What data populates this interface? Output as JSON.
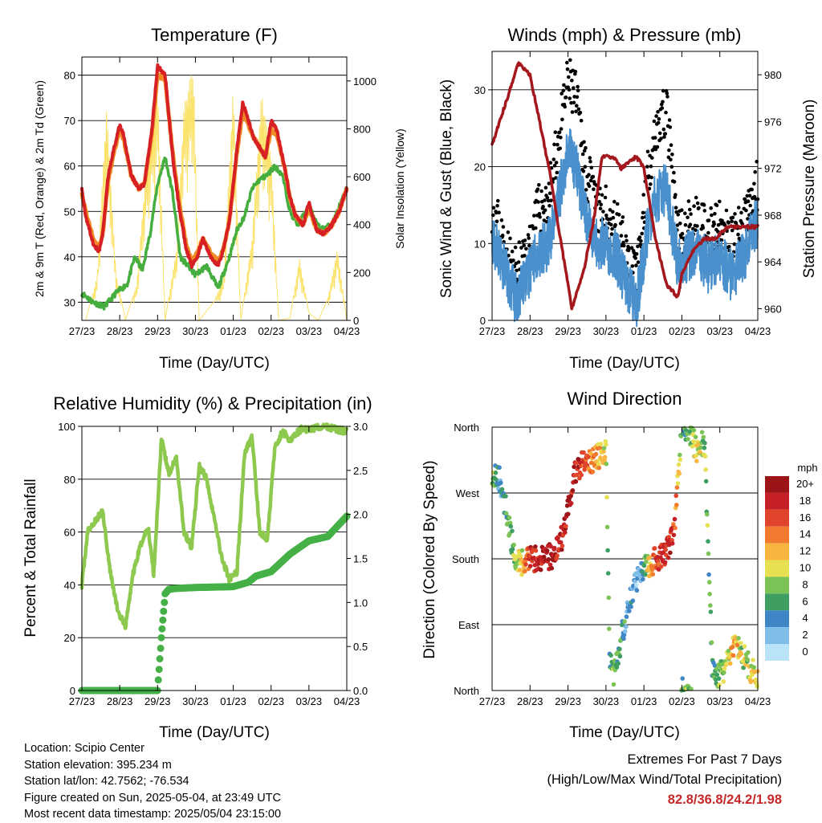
{
  "x_tick_labels": [
    "27/23",
    "28/23",
    "29/23",
    "30/23",
    "01/23",
    "02/23",
    "03/23",
    "04/23"
  ],
  "colors": {
    "t2m": "#d62023",
    "t9m": "#f08a24",
    "td": "#45ae3f",
    "solar": "#fbe26a",
    "gust": "#000000",
    "wind": "#4a90cc",
    "pressure": "#a3171d",
    "rh": "#8ec94f",
    "precip": "#44b046"
  },
  "charts": {
    "temperature": {
      "title": "Temperature (F)",
      "xlabel": "Time (Day/UTC)",
      "ylabel_left": "2m & 9m T (Red, Orange) & 2m Td (Green)",
      "ylabel_right": "Solar Insolation (Yellow)",
      "left_ticks": [
        "30",
        "40",
        "50",
        "60",
        "70",
        "80"
      ],
      "right_ticks": [
        "0",
        "200",
        "400",
        "600",
        "800",
        "1000"
      ]
    },
    "winds": {
      "title": "Winds (mph) & Pressure (mb)",
      "xlabel": "Time (Day/UTC)",
      "ylabel_left": "Sonic Wind & Gust (Blue, Black)",
      "ylabel_right": "Station Pressure (Maroon)",
      "left_ticks": [
        "0",
        "10",
        "20",
        "30"
      ],
      "right_ticks": [
        "960",
        "964",
        "968",
        "972",
        "976",
        "980"
      ]
    },
    "humidity": {
      "title": "Relative Humidity (%) & Precipitation (in)",
      "xlabel": "Time (Day/UTC)",
      "ylabel_left": "Percent & Total Rainfall",
      "left_ticks": [
        "0",
        "20",
        "40",
        "60",
        "80",
        "100"
      ],
      "right_ticks": [
        "0.0",
        "0.5",
        "1.0",
        "1.5",
        "2.0",
        "2.5",
        "3.0"
      ]
    },
    "direction": {
      "title": "Wind Direction",
      "xlabel": "Time (Day/UTC)",
      "ylabel_left": "Direction (Colored By Speed)",
      "left_ticks": [
        "North",
        "East",
        "South",
        "West",
        "North"
      ],
      "legend_title": "mph",
      "legend_labels": [
        "0",
        "2",
        "4",
        "6",
        "8",
        "10",
        "12",
        "14",
        "16",
        "18",
        "20+"
      ],
      "legend_colors": [
        "#b9e3f8",
        "#7fbde8",
        "#3f86c6",
        "#3f9f62",
        "#7cc356",
        "#e6e052",
        "#f8b640",
        "#f07b2e",
        "#e0442a",
        "#c42026",
        "#9b1417"
      ]
    }
  },
  "info": {
    "location": "Location: Scipio Center",
    "elevation": "Station elevation: 395.234 m",
    "latlon": "Station lat/lon: 42.7562; -76.534",
    "created": "Figure created on Sun, 2025-05-04, at 23:49 UTC",
    "recent": "Most recent data timestamp: 2025/05/04 23:15:00"
  },
  "extremes": {
    "line1": "Extremes For Past 7 Days",
    "line2": "(High/Low/Max Wind/Total Precipitation)",
    "values": "82.8/36.8/24.2/1.98"
  },
  "chart_data": [
    {
      "type": "line",
      "title": "Temperature (F)",
      "x_units": "days since 27/23",
      "ylim": [
        26,
        84
      ],
      "y2lim": [
        0,
        1100
      ],
      "series": [
        {
          "name": "2m T",
          "x": [
            0,
            0.1,
            0.3,
            0.45,
            0.55,
            0.7,
            0.85,
            1.0,
            1.1,
            1.3,
            1.5,
            1.65,
            1.85,
            2.0,
            2.2,
            2.4,
            2.55,
            2.75,
            2.9,
            3.05,
            3.2,
            3.4,
            3.6,
            3.75,
            3.9,
            4.1,
            4.25,
            4.4,
            4.55,
            4.7,
            4.85,
            5.0,
            5.15,
            5.35,
            5.5,
            5.65,
            5.85,
            6.0,
            6.2,
            6.4,
            6.6,
            6.8,
            7.0
          ],
          "y": [
            55,
            49,
            43,
            41,
            45,
            58,
            64,
            69,
            67,
            58,
            55,
            56,
            68,
            82,
            80,
            62,
            52,
            42,
            38,
            40,
            44,
            40,
            38,
            42,
            48,
            64,
            74,
            70,
            66,
            64,
            62,
            70,
            68,
            60,
            53,
            49,
            47,
            52,
            46,
            45,
            47,
            50,
            55
          ]
        },
        {
          "name": "9m T",
          "x": [
            0,
            0.1,
            0.3,
            0.45,
            0.55,
            0.7,
            0.85,
            1.0,
            1.1,
            1.3,
            1.5,
            1.65,
            1.85,
            2.0,
            2.2,
            2.4,
            2.55,
            2.75,
            2.9,
            3.05,
            3.2,
            3.4,
            3.6,
            3.75,
            3.9,
            4.1,
            4.25,
            4.4,
            4.55,
            4.7,
            4.85,
            5.0,
            5.15,
            5.35,
            5.5,
            5.65,
            5.85,
            6.0,
            6.2,
            6.4,
            6.6,
            6.8,
            7.0
          ],
          "y": [
            54,
            50,
            44,
            42,
            45,
            57,
            63,
            68,
            66,
            58,
            55,
            56,
            67,
            80,
            79,
            63,
            53,
            43,
            39,
            41,
            44,
            41,
            39,
            42,
            48,
            63,
            72,
            69,
            66,
            64,
            62,
            68,
            67,
            60,
            53,
            49,
            47,
            51,
            46,
            45,
            47,
            50,
            55
          ]
        },
        {
          "name": "2m Td",
          "x": [
            0,
            0.3,
            0.6,
            0.9,
            1.2,
            1.4,
            1.6,
            1.8,
            2.0,
            2.2,
            2.4,
            2.6,
            2.8,
            3.0,
            3.3,
            3.6,
            3.9,
            4.1,
            4.3,
            4.5,
            4.7,
            4.9,
            5.1,
            5.3,
            5.5,
            5.7,
            6.0,
            6.3,
            6.6,
            7.0
          ],
          "y": [
            32,
            30,
            29,
            32,
            34,
            40,
            37,
            45,
            56,
            62,
            54,
            40,
            38,
            36,
            38,
            33,
            40,
            46,
            49,
            55,
            57,
            58,
            60,
            58,
            50,
            47,
            51,
            46,
            47,
            55
          ]
        },
        {
          "name": "Solar",
          "axis": "right",
          "x": [
            0.1,
            0.4,
            0.65,
            0.9,
            1.15,
            1.45,
            1.7,
            2.0,
            2.2,
            2.5,
            2.7,
            2.95,
            3.1,
            3.5,
            3.75,
            4.0,
            4.2,
            4.5,
            4.75,
            5.0,
            5.2,
            5.5,
            5.75,
            6.0,
            6.25,
            6.5,
            6.75,
            7.0
          ],
          "y": [
            0,
            180,
            900,
            200,
            0,
            150,
            650,
            1000,
            0,
            300,
            900,
            1080,
            0,
            80,
            180,
            980,
            0,
            350,
            960,
            700,
            0,
            10,
            260,
            30,
            0,
            90,
            300,
            0
          ]
        }
      ]
    },
    {
      "type": "scatter",
      "title": "Winds (mph) & Pressure (mb)",
      "x_units": "days since 27/23",
      "ylim": [
        0,
        35
      ],
      "y2lim": [
        959,
        982
      ],
      "series": [
        {
          "name": "Sonic Wind",
          "x": [
            0,
            0.3,
            0.6,
            0.9,
            1.2,
            1.5,
            1.8,
            2.0,
            2.2,
            2.5,
            2.8,
            3.0,
            3.3,
            3.6,
            3.8,
            4.1,
            4.3,
            4.6,
            4.9,
            5.1,
            5.4,
            5.7,
            6.0,
            6.3,
            6.6,
            7.0
          ],
          "y": [
            11,
            7,
            3,
            5,
            9,
            10,
            17,
            22,
            20,
            13,
            10,
            10,
            8,
            4,
            2,
            12,
            16,
            17,
            7,
            8,
            9,
            7,
            8,
            6,
            8,
            13
          ]
        },
        {
          "name": "Gust",
          "x": [
            0,
            0.3,
            0.6,
            0.9,
            1.2,
            1.5,
            1.8,
            2.0,
            2.2,
            2.5,
            2.8,
            3.0,
            3.3,
            3.6,
            3.8,
            4.1,
            4.3,
            4.6,
            4.9,
            5.1,
            5.4,
            5.7,
            6.0,
            6.3,
            6.6,
            7.0
          ],
          "y": [
            15,
            10,
            6,
            8,
            14,
            16,
            25,
            31,
            29,
            19,
            14,
            14,
            12,
            8,
            5,
            19,
            25,
            27,
            11,
            12,
            13,
            11,
            12,
            10,
            12,
            18
          ]
        },
        {
          "name": "Pressure",
          "axis": "right",
          "x": [
            0,
            0.4,
            0.7,
            1.0,
            1.5,
            1.8,
            2.1,
            2.4,
            2.7,
            2.9,
            3.2,
            3.4,
            3.8,
            4.0,
            4.3,
            4.6,
            4.9,
            5.0,
            5.3,
            5.6,
            5.9,
            6.2,
            6.5,
            6.8,
            7.0
          ],
          "y": [
            974,
            978,
            981,
            980,
            972,
            966,
            960,
            963,
            968,
            973,
            973,
            972,
            973,
            972,
            966,
            962,
            961,
            963,
            965,
            966,
            966,
            967,
            967,
            967,
            967
          ]
        }
      ]
    },
    {
      "type": "line",
      "title": "Relative Humidity (%) & Precipitation (in)",
      "x_units": "days since 27/23",
      "ylim": [
        0,
        100
      ],
      "y2lim": [
        0,
        3.0
      ],
      "series": [
        {
          "name": "RH",
          "x": [
            0,
            0.15,
            0.35,
            0.55,
            0.75,
            0.95,
            1.15,
            1.35,
            1.55,
            1.75,
            1.9,
            2.1,
            2.3,
            2.5,
            2.7,
            2.9,
            3.1,
            3.3,
            3.5,
            3.7,
            3.9,
            4.1,
            4.3,
            4.5,
            4.7,
            4.9,
            5.1,
            5.3,
            5.5,
            5.8,
            6.1,
            6.4,
            6.7,
            7.0
          ],
          "y": [
            40,
            60,
            64,
            68,
            45,
            30,
            24,
            44,
            55,
            62,
            44,
            95,
            82,
            88,
            60,
            54,
            85,
            80,
            65,
            50,
            42,
            45,
            90,
            96,
            60,
            57,
            92,
            98,
            95,
            99,
            99,
            100,
            99,
            98
          ]
        },
        {
          "name": "Total Rainfall",
          "axis": "right",
          "x": [
            0,
            2.0,
            2.1,
            2.2,
            2.3,
            2.5,
            3.0,
            4.0,
            4.4,
            4.6,
            5.0,
            5.5,
            6.0,
            6.5,
            7.0
          ],
          "y": [
            0,
            0,
            0.6,
            1.1,
            1.15,
            1.16,
            1.17,
            1.18,
            1.23,
            1.3,
            1.35,
            1.55,
            1.7,
            1.75,
            1.98
          ]
        }
      ]
    },
    {
      "type": "scatter",
      "title": "Wind Direction",
      "x_units": "days since 27/23",
      "y_categories": [
        "North",
        "East",
        "South",
        "West",
        "North"
      ],
      "points_x": [
        0,
        0.2,
        0.4,
        0.6,
        0.8,
        1.0,
        1.2,
        1.4,
        1.6,
        1.8,
        2.0,
        2.2,
        2.4,
        2.6,
        2.8,
        3.0,
        3.1,
        3.2,
        3.4,
        3.6,
        3.8,
        4.0,
        4.2,
        4.4,
        4.6,
        4.8,
        5.0,
        5.2,
        5.4,
        5.6,
        5.8,
        6.0,
        6.2,
        6.4,
        6.6,
        6.8,
        7.0
      ],
      "points_dir_deg": [
        300,
        290,
        240,
        180,
        175,
        180,
        180,
        180,
        185,
        200,
        250,
        300,
        310,
        315,
        320,
        330,
        40,
        20,
        70,
        120,
        150,
        170,
        175,
        180,
        190,
        220,
        360,
        350,
        330,
        340,
        30,
        20,
        40,
        60,
        50,
        30,
        20
      ],
      "points_speed_mph": [
        8,
        4,
        6,
        8,
        10,
        17,
        18,
        19,
        20,
        17,
        20,
        18,
        16,
        14,
        12,
        10,
        4,
        8,
        6,
        4,
        2,
        6,
        14,
        16,
        18,
        17,
        6,
        8,
        10,
        8,
        6,
        8,
        10,
        12,
        8,
        10,
        12
      ]
    }
  ]
}
